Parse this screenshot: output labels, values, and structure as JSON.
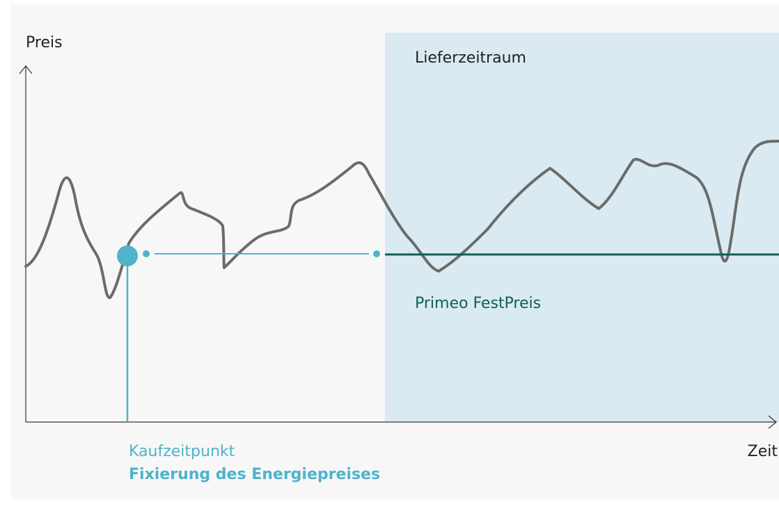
{
  "axes": {
    "y_label": "Preis",
    "x_label": "Zeit"
  },
  "regions": {
    "delivery": "Lieferzeitraum"
  },
  "lines": {
    "fixed_price": "Primeo FestPreis"
  },
  "purchase": {
    "label": "Kaufzeitpunkt",
    "caption": "Fixierung des Energiepreises"
  }
}
